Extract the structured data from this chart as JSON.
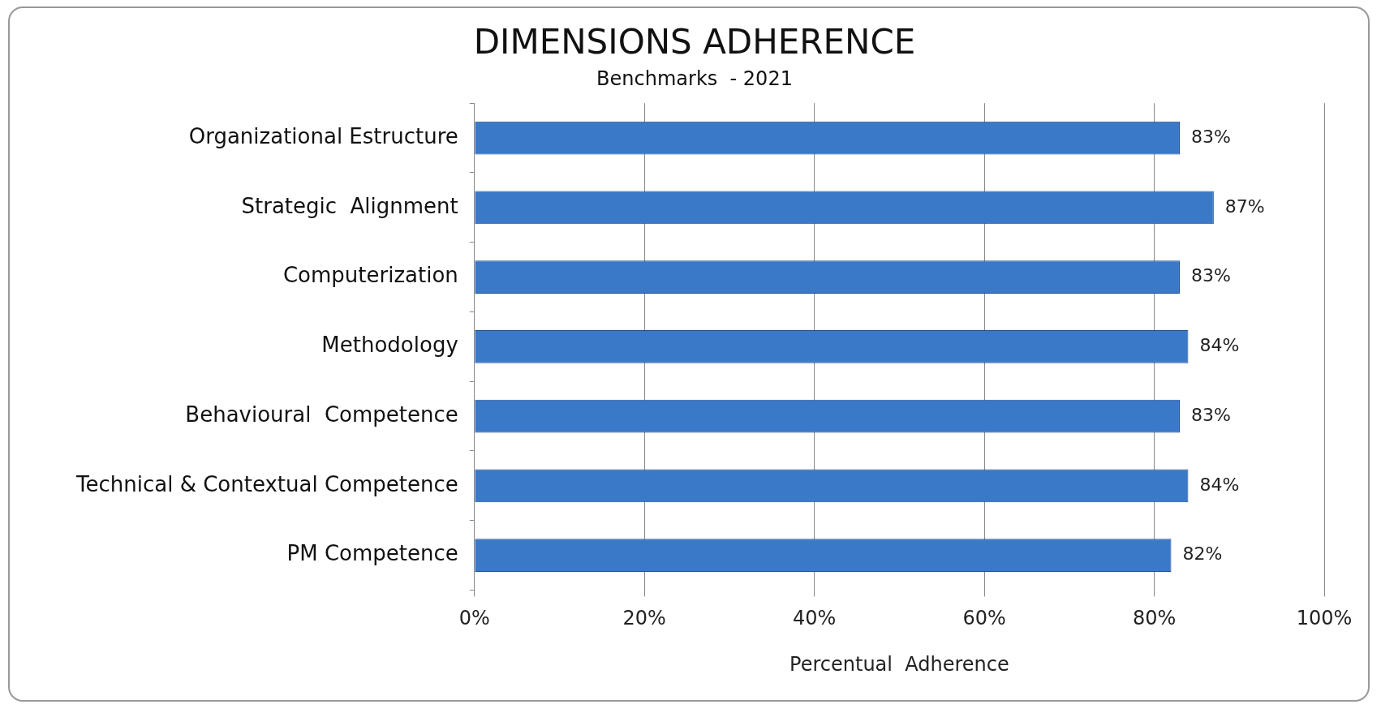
{
  "chart_data": {
    "type": "bar",
    "orientation": "horizontal",
    "title": "DIMENSIONS ADHERENCE",
    "subtitle": "Benchmarks  - 2021",
    "xlabel": "Percentual  Adherence",
    "categories": [
      "Organizational Estructure",
      "Strategic  Alignment",
      "Computerization",
      "Methodology",
      "Behavioural  Competence",
      "Technical & Contextual Competence",
      "PM Competence"
    ],
    "values": [
      83,
      87,
      83,
      84,
      83,
      84,
      82
    ],
    "value_labels": [
      "83%",
      "87%",
      "83%",
      "84%",
      "83%",
      "84%",
      "82%"
    ],
    "color": "#3a78c8",
    "xlim": [
      0,
      100
    ],
    "xticks": [
      {
        "value": 0,
        "label": "0%"
      },
      {
        "value": 20,
        "label": "20%"
      },
      {
        "value": 40,
        "label": "40%"
      },
      {
        "value": 60,
        "label": "60%"
      },
      {
        "value": 80,
        "label": "80%"
      },
      {
        "value": 100,
        "label": "100%"
      }
    ],
    "grid": "x",
    "legend": false
  }
}
